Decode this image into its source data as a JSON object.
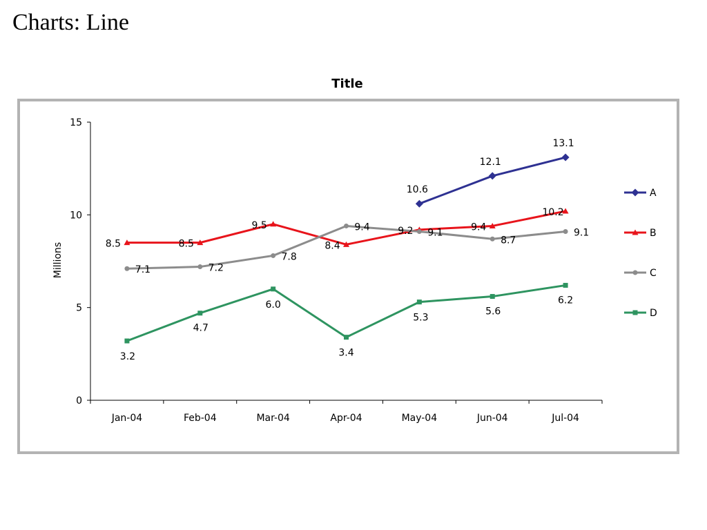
{
  "page": {
    "heading": "Charts: Line"
  },
  "chart_data": {
    "type": "line",
    "title": "Title",
    "xlabel": "",
    "ylabel": "Millions",
    "categories": [
      "Jan-04",
      "Feb-04",
      "Mar-04",
      "Apr-04",
      "May-04",
      "Jun-04",
      "Jul-04"
    ],
    "ylim": [
      0,
      15
    ],
    "yticks": [
      0,
      5,
      10,
      15
    ],
    "grid": false,
    "legend_position": "right",
    "series": [
      {
        "name": "A",
        "color": "#2e3192",
        "marker": "diamond",
        "values": [
          null,
          null,
          null,
          null,
          10.6,
          12.1,
          13.1
        ],
        "labels": [
          "",
          "",
          "",
          "",
          "10.6",
          "12.1",
          "13.1"
        ]
      },
      {
        "name": "B",
        "color": "#e8141b",
        "marker": "triangle",
        "values": [
          8.5,
          8.5,
          9.5,
          8.4,
          9.2,
          9.4,
          10.2
        ],
        "labels": [
          "8.5",
          "8.5",
          "9.5",
          "8.4",
          "9.2",
          "9.4",
          "10.2"
        ]
      },
      {
        "name": "C",
        "color": "#8c8c8c",
        "marker": "circle",
        "values": [
          7.1,
          7.2,
          7.8,
          9.4,
          9.1,
          8.7,
          9.1
        ],
        "labels": [
          "7.1",
          "7.2",
          "7.8",
          "9.4",
          "9.1",
          "8.7",
          "9.1"
        ]
      },
      {
        "name": "D",
        "color": "#2e9460",
        "marker": "square",
        "values": [
          3.2,
          4.7,
          6.0,
          3.4,
          5.3,
          5.6,
          6.2
        ],
        "labels": [
          "3.2",
          "4.7",
          "6.0",
          "3.4",
          "5.3",
          "5.6",
          "6.2"
        ]
      }
    ]
  }
}
